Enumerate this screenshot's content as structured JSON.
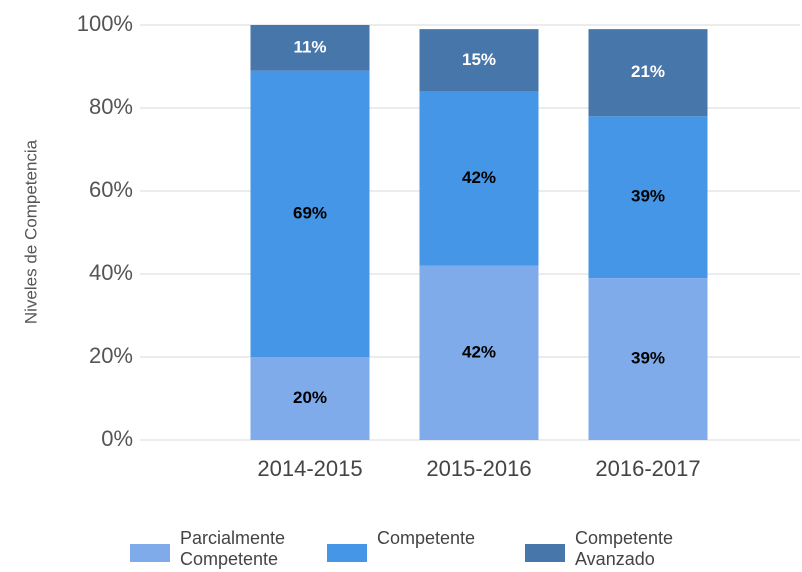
{
  "chart_data": {
    "type": "stacked_bar",
    "y_label": "Niveles de Competencia",
    "categories": [
      "2014-2015",
      "2015-2016",
      "2016-2017"
    ],
    "series": [
      {
        "name": "Parcialmente Competente",
        "color": "#7fabea",
        "label_color": "#000000",
        "values": [
          20,
          42,
          39
        ],
        "value_labels": [
          "20%",
          "42%",
          "39%"
        ]
      },
      {
        "name": "Competente",
        "color": "#4596e6",
        "label_color": "#000000",
        "values": [
          69,
          42,
          39
        ],
        "value_labels": [
          "69%",
          "42%",
          "39%"
        ]
      },
      {
        "name": "Competente Avanzado",
        "color": "#4776ab",
        "label_color": "#ffffff",
        "values": [
          11,
          15,
          21
        ],
        "value_labels": [
          "11%",
          "15%",
          "21%"
        ]
      }
    ],
    "ylim": [
      0,
      100
    ],
    "yticks": [
      {
        "value": 0,
        "label": "0%"
      },
      {
        "value": 20,
        "label": "20%"
      },
      {
        "value": 40,
        "label": "40%"
      },
      {
        "value": 60,
        "label": "60%"
      },
      {
        "value": 80,
        "label": "80%"
      },
      {
        "value": 100,
        "label": "100%"
      }
    ],
    "grid": true,
    "legend": "bottom"
  }
}
